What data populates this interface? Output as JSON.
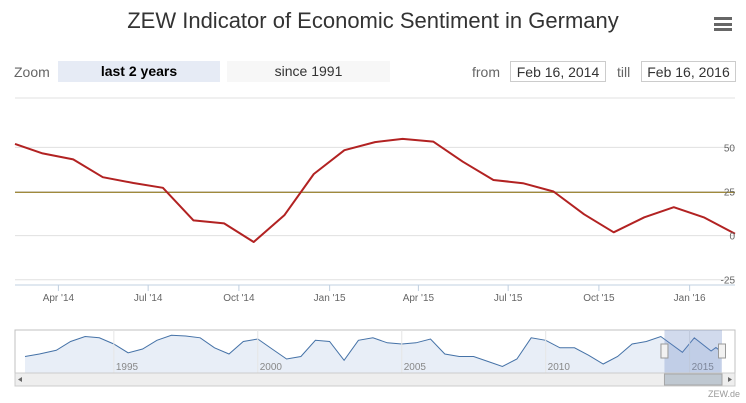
{
  "header": {
    "title": "ZEW Indicator of Economic Sentiment in Germany",
    "menu_icon": "hamburger-icon"
  },
  "range_selector": {
    "zoom_label": "Zoom",
    "buttons": [
      {
        "label": "last 2 years",
        "active": true
      },
      {
        "label": "since 1991",
        "active": false
      }
    ],
    "from_label": "from",
    "from_value": "Feb 16, 2014",
    "till_label": "till",
    "till_value": "Feb 16, 2016"
  },
  "chart_data": {
    "type": "line",
    "series": [
      {
        "color": "#b22222",
        "x": [
          "2014-02",
          "2014-03",
          "2014-04",
          "2014-05",
          "2014-06",
          "2014-07",
          "2014-08",
          "2014-09",
          "2014-10",
          "2014-11",
          "2014-12",
          "2015-01",
          "2015-02",
          "2015-03",
          "2015-04",
          "2015-05",
          "2015-06",
          "2015-07",
          "2015-08",
          "2015-09",
          "2015-10",
          "2015-11",
          "2015-12",
          "2016-01",
          "2016-02"
        ],
        "values": [
          52.0,
          46.6,
          43.2,
          33.1,
          29.8,
          27.1,
          8.6,
          6.9,
          -3.6,
          11.5,
          34.9,
          48.4,
          53.0,
          54.8,
          53.3,
          41.9,
          31.5,
          29.7,
          25.0,
          12.1,
          1.9,
          10.4,
          16.1,
          10.2,
          1.0
        ]
      }
    ],
    "reference_line": {
      "value": 24.5,
      "color": "#a08a3c"
    },
    "yticks": [
      50,
      25,
      0,
      -25
    ],
    "ylim": [
      -28,
      78
    ],
    "xlim": [
      "2014-02-16",
      "2016-02-16"
    ],
    "xticks": [
      "Apr '14",
      "Jul '14",
      "Oct '14",
      "Jan '15",
      "Apr '15",
      "Jul '15",
      "Oct '15",
      "Jan '16"
    ],
    "xtick_dates": [
      "2014-04-01",
      "2014-07-01",
      "2014-10-01",
      "2015-01-01",
      "2015-04-01",
      "2015-07-01",
      "2015-10-01",
      "2016-01-01"
    ],
    "grid": true
  },
  "navigator": {
    "year_labels": [
      "1995",
      "2000",
      "2005",
      "2010",
      "2015"
    ],
    "year_dates": [
      "1995-01-01",
      "2000-01-01",
      "2005-01-01",
      "2010-01-01",
      "2015-01-01"
    ],
    "range_start": "1991-12-01",
    "range_end": "2016-02-16",
    "series": [
      [
        "1991-12-01",
        -20
      ],
      [
        "1992-06-01",
        -10
      ],
      [
        "1993-01-01",
        5
      ],
      [
        "1993-07-01",
        40
      ],
      [
        "1994-01-01",
        60
      ],
      [
        "1994-07-01",
        55
      ],
      [
        "1995-01-01",
        30
      ],
      [
        "1995-07-01",
        -5
      ],
      [
        "1996-01-01",
        10
      ],
      [
        "1996-07-01",
        45
      ],
      [
        "1997-01-01",
        65
      ],
      [
        "1997-07-01",
        62
      ],
      [
        "1998-01-01",
        55
      ],
      [
        "1998-07-01",
        15
      ],
      [
        "1999-01-01",
        -10
      ],
      [
        "1999-07-01",
        40
      ],
      [
        "2000-01-01",
        50
      ],
      [
        "2000-07-01",
        10
      ],
      [
        "2001-01-01",
        -30
      ],
      [
        "2001-07-01",
        -20
      ],
      [
        "2002-01-01",
        45
      ],
      [
        "2002-07-01",
        40
      ],
      [
        "2003-01-01",
        -35
      ],
      [
        "2003-07-01",
        45
      ],
      [
        "2004-01-01",
        55
      ],
      [
        "2004-07-01",
        35
      ],
      [
        "2005-01-01",
        30
      ],
      [
        "2005-07-01",
        35
      ],
      [
        "2006-01-01",
        50
      ],
      [
        "2006-07-01",
        -10
      ],
      [
        "2007-01-01",
        -20
      ],
      [
        "2007-07-01",
        -20
      ],
      [
        "2008-01-01",
        -40
      ],
      [
        "2008-07-01",
        -60
      ],
      [
        "2009-01-01",
        -30
      ],
      [
        "2009-07-01",
        55
      ],
      [
        "2010-01-01",
        45
      ],
      [
        "2010-07-01",
        15
      ],
      [
        "2011-01-01",
        15
      ],
      [
        "2011-07-01",
        -15
      ],
      [
        "2012-01-01",
        -50
      ],
      [
        "2012-07-01",
        -20
      ],
      [
        "2013-01-01",
        30
      ],
      [
        "2013-07-01",
        40
      ],
      [
        "2014-01-01",
        60
      ],
      [
        "2014-10-01",
        -3
      ],
      [
        "2015-03-01",
        55
      ],
      [
        "2015-10-01",
        2
      ],
      [
        "2015-12-01",
        16
      ],
      [
        "2016-02-01",
        1
      ]
    ]
  },
  "footer": {
    "credit": "ZEW.de"
  }
}
